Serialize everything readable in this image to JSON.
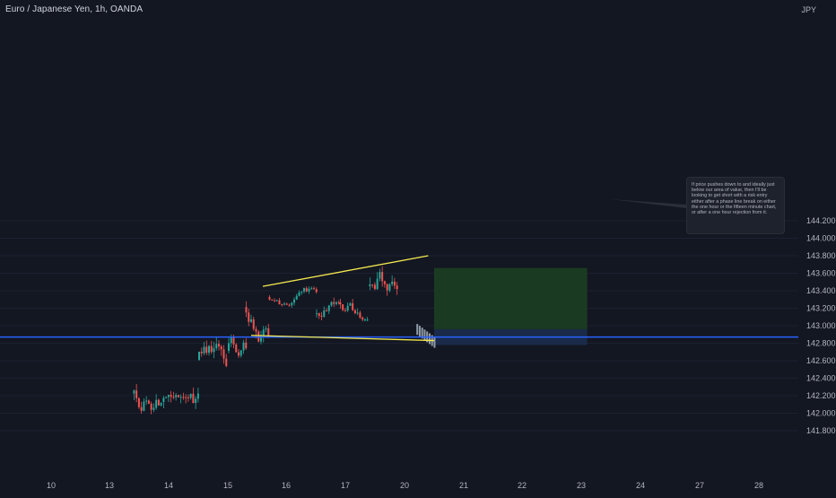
{
  "header": {
    "title": "Euro / Japanese Yen, 1h, OANDA",
    "currency": "JPY"
  },
  "price_axis": {
    "ticks": [
      "144.200",
      "144.000",
      "143.800",
      "143.600",
      "143.400",
      "143.200",
      "143.000",
      "142.800",
      "142.600",
      "142.400",
      "142.200",
      "142.000",
      "141.800"
    ]
  },
  "time_axis": {
    "ticks": [
      "10",
      "13",
      "14",
      "15",
      "16",
      "17",
      "20",
      "21",
      "22",
      "23",
      "24",
      "27",
      "28"
    ]
  },
  "annotation": {
    "text": "If price pushes down to and ideally just below our area of value, then I'll be looking to get short with a risk entry either after a phase line break on either the one hour or the fifteen minute chart, or after a one hour rejection from it."
  },
  "colors": {
    "background": "#131722",
    "candle_up": "#26a69a",
    "candle_down": "#ef5350",
    "trendline": "#f5e94f",
    "horizontal_line": "#2962ff",
    "profit_zone": "#1a3d22",
    "stop_zone": "#1b2c4f",
    "projection": "#8f9aa8"
  },
  "chart_data": {
    "type": "candlestick",
    "symbol": "Euro / Japanese Yen",
    "interval": "1h",
    "source": "OANDA",
    "ylim": [
      141.75,
      144.35
    ],
    "horizontal_level": 142.87,
    "trendlines": [
      {
        "from": [
          "15.6",
          143.45
        ],
        "to": [
          "20.4",
          143.8
        ]
      },
      {
        "from": [
          "15.4",
          142.89
        ],
        "to": [
          "20.5",
          142.83
        ]
      }
    ],
    "position_zones": [
      {
        "kind": "target",
        "from": "20.5",
        "to": "23.1",
        "top": 143.66,
        "bottom": 142.96
      },
      {
        "kind": "stop",
        "from": "20.5",
        "to": "23.1",
        "top": 142.96,
        "bottom": 142.78
      }
    ],
    "segments": [
      {
        "from": "13.4",
        "to": "13.9",
        "range": [
          141.78,
          142.42
        ]
      },
      {
        "from": "13.9",
        "to": "14.5",
        "range": [
          141.72,
          142.32
        ]
      },
      {
        "from": "14.5",
        "to": "15.0",
        "range": [
          142.28,
          142.93
        ]
      },
      {
        "from": "15.0",
        "to": "15.3",
        "range": [
          142.35,
          142.9
        ]
      },
      {
        "from": "15.3",
        "to": "15.7",
        "range": [
          142.75,
          143.42
        ]
      },
      {
        "from": "15.7",
        "to": "16.5",
        "range": [
          143.18,
          143.45
        ]
      },
      {
        "from": "16.5",
        "to": "16.9",
        "range": [
          142.9,
          143.35
        ]
      },
      {
        "from": "16.9",
        "to": "17.4",
        "range": [
          143.05,
          143.55
        ]
      },
      {
        "from": "17.4",
        "to": "17.9",
        "range": [
          143.0,
          143.68
        ]
      },
      {
        "from": "17.9",
        "to": "19.9",
        "range": [
          143.15,
          143.55
        ]
      }
    ],
    "projection": {
      "from": "20.2",
      "to": "20.5",
      "range": [
        142.85,
        143.02
      ]
    }
  }
}
